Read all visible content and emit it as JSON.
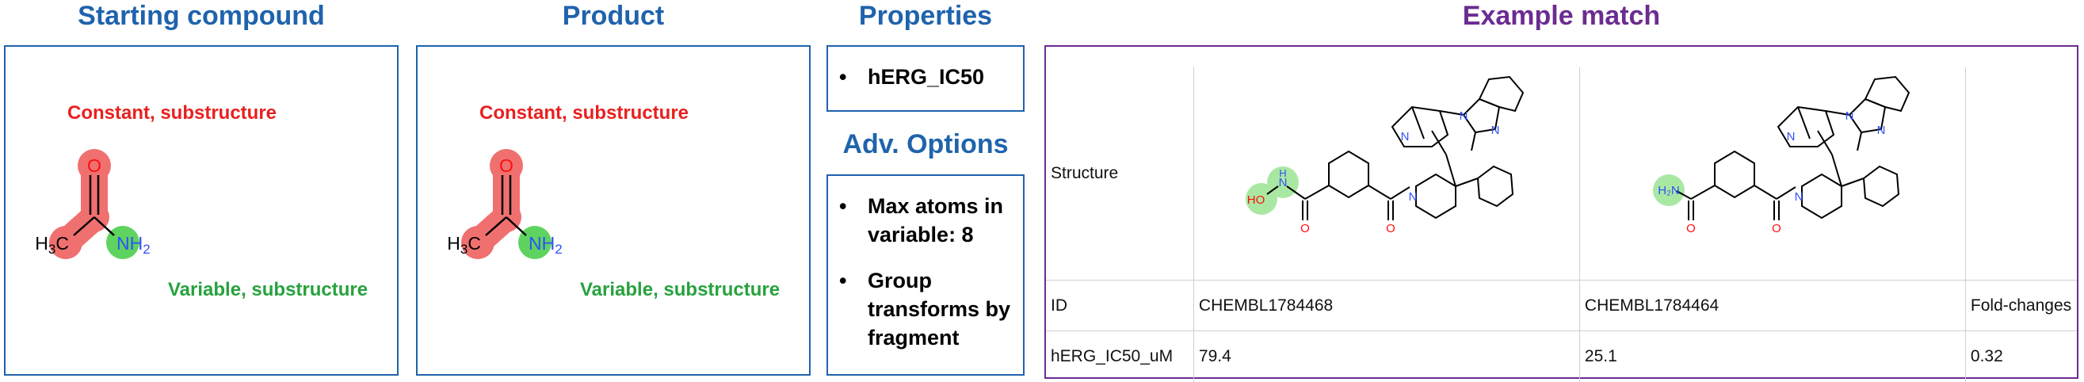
{
  "headings": {
    "starting": "Starting compound",
    "product": "Product",
    "properties": "Properties",
    "adv_options": "Adv. Options",
    "example": "Example match"
  },
  "starting_compound": {
    "atom_o": "O",
    "atom_ch3": "H3C",
    "atom_nh2": "NH2",
    "constant_label": "Constant, substructure",
    "variable_label": "Variable, substructure"
  },
  "product": {
    "atom_o": "O",
    "atom_ch3": "H3C",
    "atom_nh2": "NH2",
    "constant_label": "Constant, substructure",
    "variable_label": "Variable, substructure"
  },
  "properties": {
    "items": [
      "hERG_IC50"
    ]
  },
  "adv_options": {
    "items": [
      "Max atoms in variable: 8",
      "Group transforms by fragment"
    ]
  },
  "example_match": {
    "rows": [
      {
        "label": "Structure",
        "col1": "",
        "col2": "",
        "col3": ""
      },
      {
        "label": "ID",
        "col1": "CHEMBL1784468",
        "col2": "CHEMBL1784464",
        "col3": "Fold-changes"
      },
      {
        "label": "hERG_IC50_uM",
        "col1": "79.4",
        "col2": "25.1",
        "col3": "0.32"
      }
    ],
    "mol1_group": "HO-NH",
    "mol2_group": "H2N"
  },
  "colors": {
    "heading_blue": "#1f63ac",
    "heading_purple": "#6b2c91",
    "constant_red": "#e8201f",
    "variable_green": "#27a23e",
    "atom_highlight_red": "#f07070",
    "atom_highlight_green": "#5fd35f",
    "nitrogen_blue": "#3050f8",
    "oxygen_red": "#ff0d0d"
  }
}
